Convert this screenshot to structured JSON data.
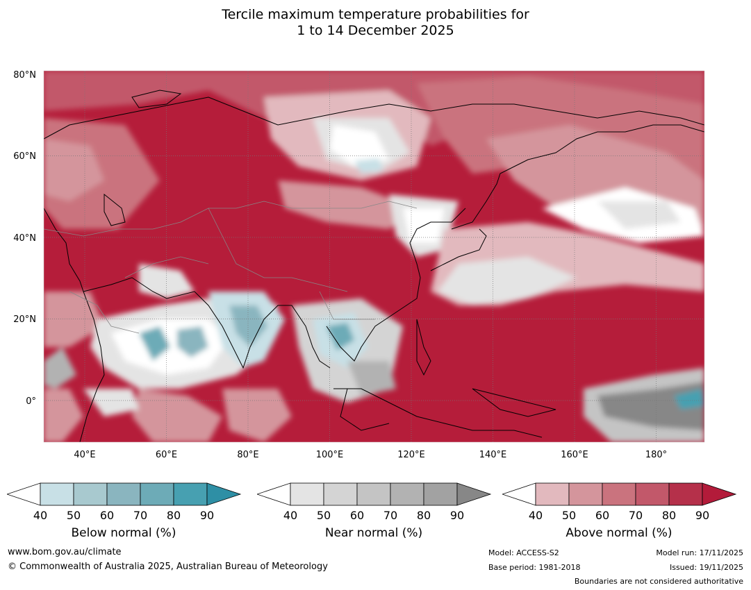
{
  "title": {
    "line1": "Tercile maximum temperature probabilities for",
    "line2": "1 to 14 December 2025"
  },
  "map": {
    "lat_labels": [
      "80°N",
      "60°N",
      "40°N",
      "20°N",
      "0°"
    ],
    "lon_labels": [
      "40°E",
      "60°E",
      "80°E",
      "100°E",
      "120°E",
      "140°E",
      "160°E",
      "180°"
    ],
    "base_color": "#b51d3a"
  },
  "legends": [
    {
      "title": "Below normal (%)",
      "ticks": [
        "40",
        "50",
        "60",
        "70",
        "80",
        "90"
      ],
      "colors": [
        "#ffffff",
        "#c8e0e6",
        "#a8c9cf",
        "#8ab5bf",
        "#6dabb7",
        "#47a0b1",
        "#2e8fa5"
      ]
    },
    {
      "title": "Near normal (%)",
      "ticks": [
        "40",
        "50",
        "60",
        "70",
        "80",
        "90"
      ],
      "colors": [
        "#ffffff",
        "#e4e4e4",
        "#d4d4d4",
        "#c4c4c4",
        "#b2b2b2",
        "#a2a2a2",
        "#878787"
      ]
    },
    {
      "title": "Above normal (%)",
      "ticks": [
        "40",
        "50",
        "60",
        "70",
        "80",
        "90"
      ],
      "colors": [
        "#ffffff",
        "#e2b9be",
        "#d4959c",
        "#ca737e",
        "#c2586a",
        "#b5304a",
        "#b31b3a"
      ]
    }
  ],
  "footer": {
    "website": "www.bom.gov.au/climate",
    "copyright": "© Commonwealth of Australia 2025, Australian Bureau of Meteorology",
    "model": "Model: ACCESS-S2",
    "base_period": "Base period: 1981-2018",
    "model_run": "Model run: 17/11/2025",
    "issued": "Issued: 19/11/2025",
    "disclaimer": "Boundaries are not considered authoritative"
  }
}
